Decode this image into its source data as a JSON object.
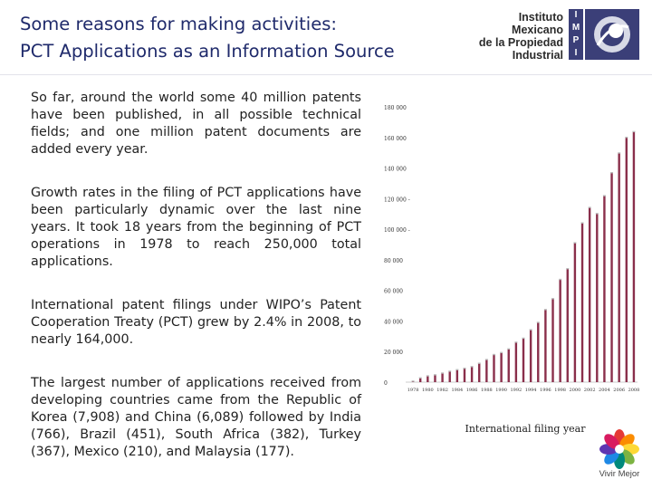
{
  "title": {
    "line1": "Some reasons for making activities:",
    "line2": "PCT Applications as an Information Source"
  },
  "logo": {
    "line1": "Instituto",
    "line2": "Mexicano",
    "line3": "de la Propiedad",
    "line4": "Industrial",
    "letters": [
      "I",
      "M",
      "P",
      "I"
    ],
    "color": "#3b3f78"
  },
  "paragraphs": [
    "So far, around the world some 40 million patents have been published, in all possible technical fields; and one million patent documents are added every year.",
    "Growth rates in the filing of PCT applications have been particularly dynamic over the last nine years. It took 18 years from the beginning of PCT operations in 1978 to reach 250,000 total applications.",
    "International patent filings under WIPO’s Patent Cooperation Treaty (PCT) grew by 2.4% in 2008, to nearly 164,000.",
    "The largest number of applications received from developing countries came from the Republic of Korea (7,908) and China (6,089) followed by India (766), Brazil (451), South Africa (382), Turkey (367), Mexico (210), and Malaysia (177)."
  ],
  "chart_data": {
    "type": "bar",
    "title": "",
    "xlabel": "International filing year",
    "ylabel": "",
    "ylim": [
      0,
      180000
    ],
    "yticks": [
      0,
      20000,
      40000,
      60000,
      80000,
      100000,
      120000,
      140000,
      160000,
      180000
    ],
    "ytick_labels": [
      "0",
      "20 000",
      "40 000",
      "60 000",
      "80 000",
      "100 000 -",
      "120 000 -",
      "140 000",
      "160 000",
      "180 000"
    ],
    "xtick_labels": [
      "1978",
      "1980",
      "1982",
      "1984",
      "1986",
      "1988",
      "1990",
      "1992",
      "1994",
      "1996",
      "1998",
      "2000",
      "2002",
      "2004",
      "2006",
      "2008"
    ],
    "categories": [
      "1978",
      "1979",
      "1980",
      "1981",
      "1982",
      "1983",
      "1984",
      "1985",
      "1986",
      "1987",
      "1988",
      "1989",
      "1990",
      "1991",
      "1992",
      "1993",
      "1994",
      "1995",
      "1996",
      "1997",
      "1998",
      "1999",
      "2000",
      "2001",
      "2002",
      "2003",
      "2004",
      "2005",
      "2006",
      "2007",
      "2008"
    ],
    "values": [
      459,
      2625,
      3939,
      4621,
      5747,
      6962,
      7969,
      8895,
      9991,
      12154,
      14603,
      17854,
      19159,
      21570,
      25917,
      28577,
      34104,
      38906,
      47291,
      54422,
      67007,
      74023,
      90948,
      103947,
      114048,
      110065,
      121742,
      136765,
      149664,
      159886,
      163600
    ],
    "bar_color": "#8a2f4b"
  },
  "brand": {
    "text": "Vivir Mejor"
  }
}
